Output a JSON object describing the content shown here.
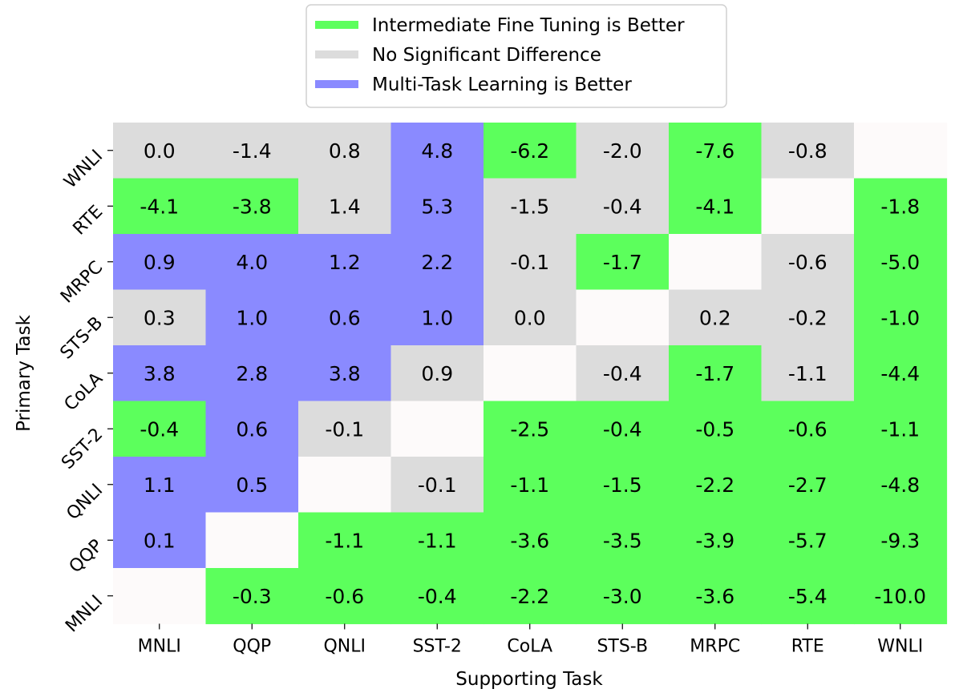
{
  "chart_data": {
    "type": "heatmap",
    "xlabel": "Supporting Task",
    "ylabel": "Primary Task",
    "x_categories": [
      "MNLI",
      "QQP",
      "QNLI",
      "SST-2",
      "CoLA",
      "STS-B",
      "MRPC",
      "RTE",
      "WNLI"
    ],
    "y_categories": [
      "WNLI",
      "RTE",
      "MRPC",
      "STS-B",
      "CoLA",
      "SST-2",
      "QNLI",
      "QQP",
      "MNLI"
    ],
    "legend": {
      "placement": "top-center",
      "entries": [
        {
          "key": "ift",
          "label": "Intermediate Fine Tuning is Better",
          "color": "#5cff5c"
        },
        {
          "key": "none",
          "label": "No Significant Difference",
          "color": "#dcdcdc"
        },
        {
          "key": "mtl",
          "label": "Multi-Task Learning is Better",
          "color": "#8a8aff"
        }
      ]
    },
    "empty_color": "#fdfafa",
    "grid": false,
    "rows": [
      {
        "primary": "WNLI",
        "labels": [
          "0.0",
          "-1.4",
          "0.8",
          "4.8",
          "-6.2",
          "-2.0",
          "-7.6",
          "-0.8",
          ""
        ],
        "classes": [
          "none",
          "none",
          "none",
          "mtl",
          "ift",
          "none",
          "ift",
          "none",
          "empty"
        ]
      },
      {
        "primary": "RTE",
        "labels": [
          "-4.1",
          "-3.8",
          "1.4",
          "5.3",
          "-1.5",
          "-0.4",
          "-4.1",
          "",
          "-1.8"
        ],
        "classes": [
          "ift",
          "ift",
          "none",
          "mtl",
          "none",
          "none",
          "ift",
          "empty",
          "ift"
        ]
      },
      {
        "primary": "MRPC",
        "labels": [
          "0.9",
          "4.0",
          "1.2",
          "2.2",
          "-0.1",
          "-1.7",
          "",
          "-0.6",
          "-5.0"
        ],
        "classes": [
          "mtl",
          "mtl",
          "mtl",
          "mtl",
          "none",
          "ift",
          "empty",
          "none",
          "ift"
        ]
      },
      {
        "primary": "STS-B",
        "labels": [
          "0.3",
          "1.0",
          "0.6",
          "1.0",
          "0.0",
          "",
          "0.2",
          "-0.2",
          "-1.0"
        ],
        "classes": [
          "none",
          "mtl",
          "mtl",
          "mtl",
          "none",
          "empty",
          "none",
          "none",
          "ift"
        ]
      },
      {
        "primary": "CoLA",
        "labels": [
          "3.8",
          "2.8",
          "3.8",
          "0.9",
          "",
          "-0.4",
          "-1.7",
          "-1.1",
          "-4.4"
        ],
        "classes": [
          "mtl",
          "mtl",
          "mtl",
          "none",
          "empty",
          "none",
          "ift",
          "none",
          "ift"
        ]
      },
      {
        "primary": "SST-2",
        "labels": [
          "-0.4",
          "0.6",
          "-0.1",
          "",
          "-2.5",
          "-0.4",
          "-0.5",
          "-0.6",
          "-1.1"
        ],
        "classes": [
          "ift",
          "mtl",
          "none",
          "empty",
          "ift",
          "ift",
          "ift",
          "ift",
          "ift"
        ]
      },
      {
        "primary": "QNLI",
        "labels": [
          "1.1",
          "0.5",
          "",
          "-0.1",
          "-1.1",
          "-1.5",
          "-2.2",
          "-2.7",
          "-4.8"
        ],
        "classes": [
          "mtl",
          "mtl",
          "empty",
          "none",
          "ift",
          "ift",
          "ift",
          "ift",
          "ift"
        ]
      },
      {
        "primary": "QQP",
        "labels": [
          "0.1",
          "",
          "-1.1",
          "-1.1",
          "-3.6",
          "-3.5",
          "-3.9",
          "-5.7",
          "-9.3"
        ],
        "classes": [
          "mtl",
          "empty",
          "ift",
          "ift",
          "ift",
          "ift",
          "ift",
          "ift",
          "ift"
        ]
      },
      {
        "primary": "MNLI",
        "labels": [
          "",
          "-0.3",
          "-0.6",
          "-0.4",
          "-2.2",
          "-3.0",
          "-3.6",
          "-5.4",
          "-10.0"
        ],
        "classes": [
          "empty",
          "ift",
          "ift",
          "ift",
          "ift",
          "ift",
          "ift",
          "ift",
          "ift"
        ]
      }
    ]
  }
}
